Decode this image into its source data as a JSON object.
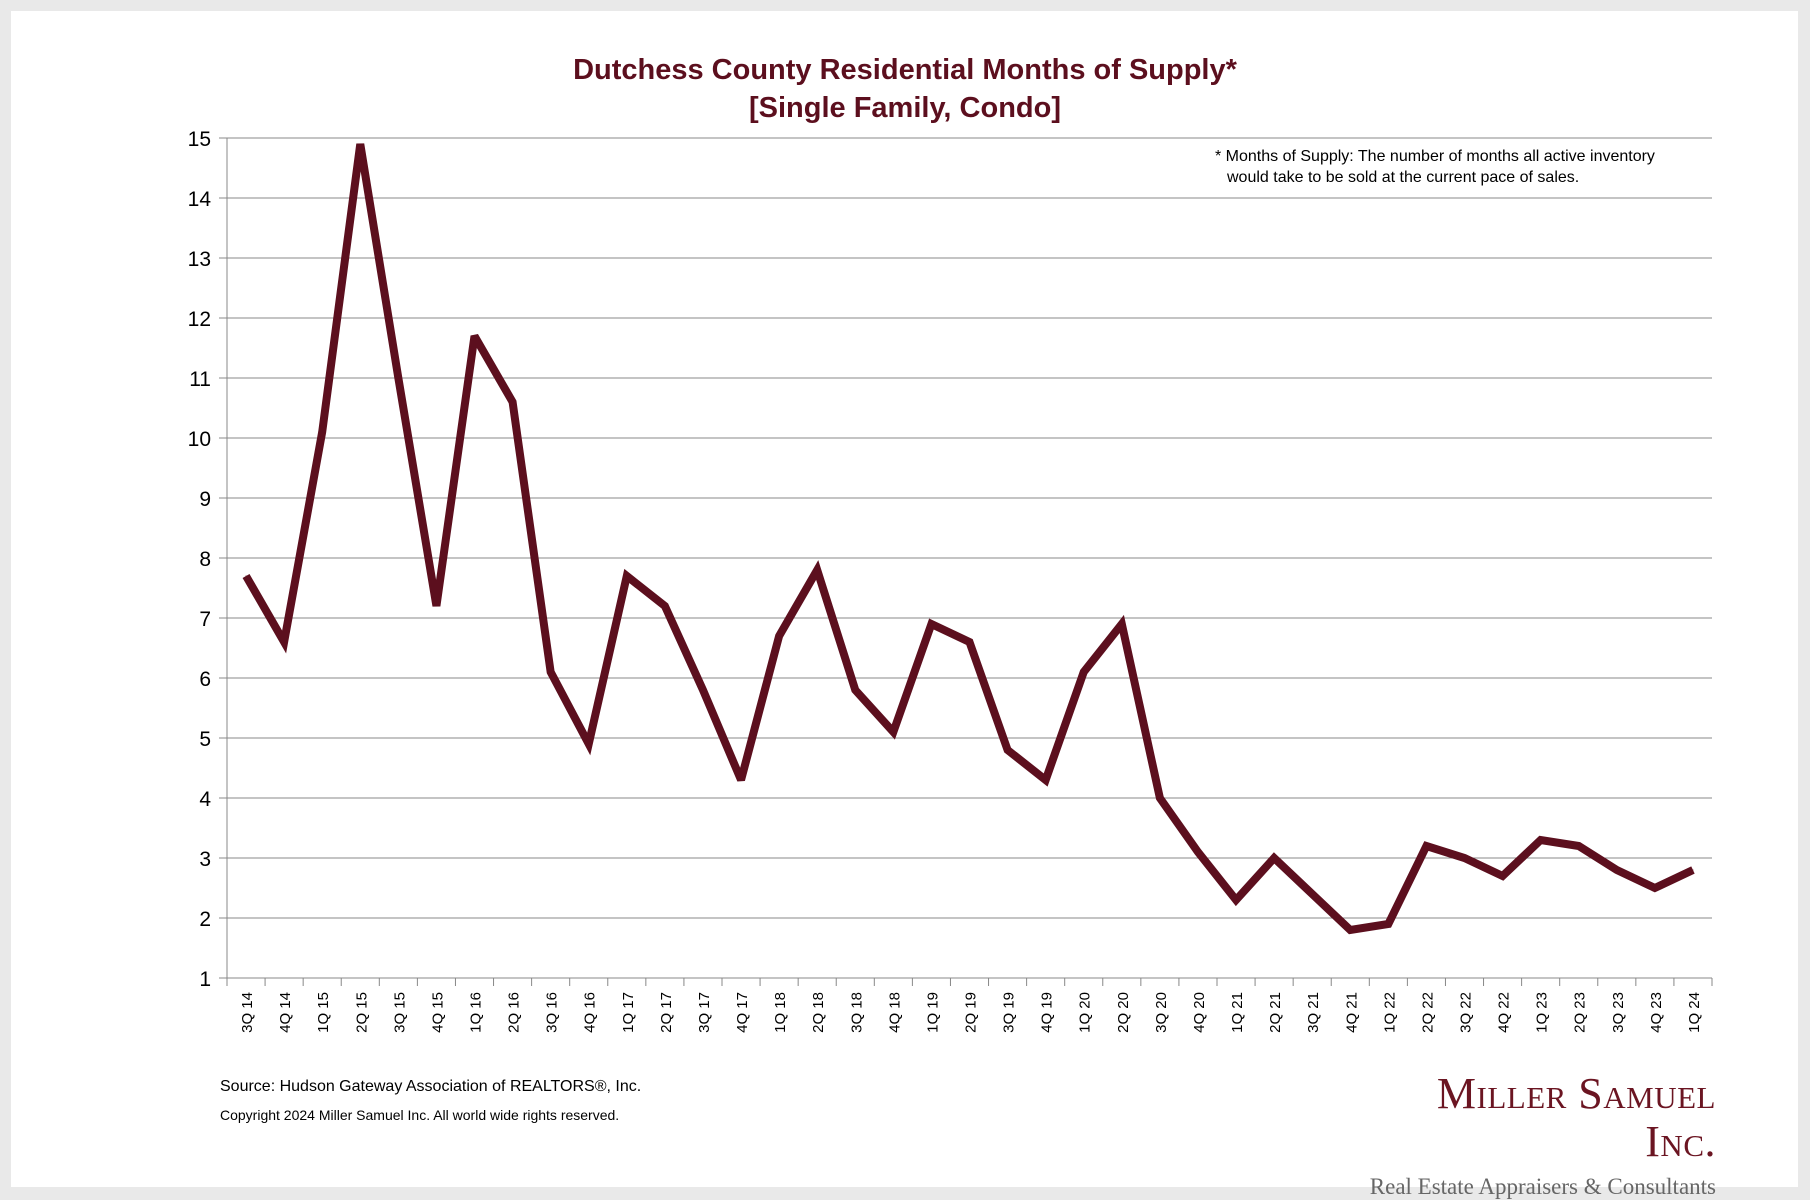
{
  "chart_data": {
    "type": "line",
    "title": "Dutchess County Residential Months of Supply*",
    "subtitle": "[Single Family, Condo]",
    "xlabel": "",
    "ylabel": "",
    "ylim": [
      1,
      15
    ],
    "yticks": [
      1,
      2,
      3,
      4,
      5,
      6,
      7,
      8,
      9,
      10,
      11,
      12,
      13,
      14,
      15
    ],
    "grid": true,
    "categories": [
      "3Q 14",
      "4Q 14",
      "1Q 15",
      "2Q 15",
      "3Q 15",
      "4Q 15",
      "1Q 16",
      "2Q 16",
      "3Q 16",
      "4Q 16",
      "1Q 17",
      "2Q 17",
      "3Q 17",
      "4Q 17",
      "1Q 18",
      "2Q 18",
      "3Q 18",
      "4Q 18",
      "1Q 19",
      "2Q 19",
      "3Q 19",
      "4Q 19",
      "1Q 20",
      "2Q 20",
      "3Q 20",
      "4Q 20",
      "1Q 21",
      "2Q 21",
      "3Q 21",
      "4Q 21",
      "1Q 22",
      "2Q 22",
      "3Q 22",
      "4Q 22",
      "1Q 23",
      "2Q 23",
      "3Q 23",
      "4Q 23",
      "1Q 24"
    ],
    "series": [
      {
        "name": "Months of Supply",
        "color": "#5c0f1e",
        "values": [
          7.7,
          6.6,
          10.1,
          14.9,
          11.0,
          7.2,
          11.7,
          10.6,
          6.1,
          4.9,
          7.7,
          7.2,
          5.8,
          4.3,
          6.7,
          7.8,
          5.8,
          5.1,
          6.9,
          6.6,
          4.8,
          4.3,
          6.1,
          6.9,
          4.0,
          3.1,
          2.3,
          3.0,
          2.4,
          1.8,
          1.9,
          3.2,
          3.0,
          2.7,
          3.3,
          3.2,
          2.8,
          2.5,
          2.8
        ]
      }
    ],
    "annotation": [
      "* Months of Supply: The number of months all active inventory",
      "would take to be sold at the current pace of sales."
    ]
  },
  "footer": {
    "source": "Source: Hudson Gateway Association of REALTORS®, Inc.",
    "copyright": "Copyright 2024 Miller Samuel Inc.  All world wide rights reserved."
  },
  "logo": {
    "name": "Miller Samuel Inc.",
    "tagline": "Real Estate Appraisers & Consultants"
  }
}
